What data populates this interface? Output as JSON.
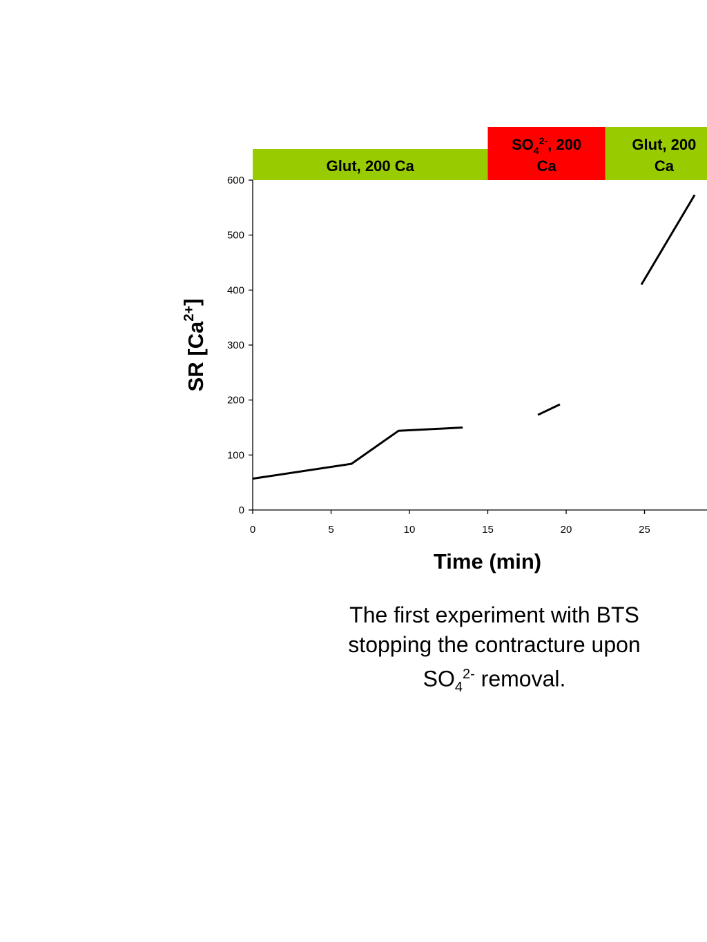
{
  "chart_data": {
    "type": "line",
    "xlabel": "Time (min)",
    "ylabel": {
      "text": "SR [Ca",
      "sup": "2+",
      "tail": "]"
    },
    "xlim": [
      0,
      30
    ],
    "ylim": [
      0,
      600
    ],
    "x_ticks": [
      0,
      5,
      10,
      15,
      20,
      25
    ],
    "y_ticks": [
      0,
      100,
      200,
      300,
      400,
      500,
      600
    ],
    "grid": false,
    "series": [
      {
        "segments": [
          [
            [
              0,
              57
            ],
            [
              6.3,
              84
            ],
            [
              9.3,
              144
            ],
            [
              13.4,
              150
            ]
          ],
          [
            [
              18.2,
              173
            ],
            [
              19.6,
              192
            ]
          ],
          [
            [
              24.8,
              410
            ],
            [
              28.2,
              573
            ]
          ]
        ]
      }
    ],
    "bands": [
      {
        "start": 0,
        "end": 15,
        "color": "#99cc00",
        "lines": [
          {
            "text": "Glut, 200 Ca"
          }
        ]
      },
      {
        "start": 15,
        "end": 22.5,
        "color": "#ff0000",
        "lines": [
          {
            "text": "SO",
            "sub": "4",
            "sup": "2-",
            "tail": ", 200"
          },
          {
            "text": "Ca"
          }
        ]
      },
      {
        "start": 22.5,
        "end": 30,
        "color": "#99cc00",
        "lines": [
          {
            "text": "Glut, 200"
          },
          {
            "text": "Ca"
          }
        ]
      }
    ]
  },
  "caption": {
    "line1": "The first experiment with BTS",
    "line2": "stopping the contracture upon",
    "line3_pre": "SO",
    "line3_sub": "4",
    "line3_sup": "2-",
    "line3_post": " removal."
  }
}
